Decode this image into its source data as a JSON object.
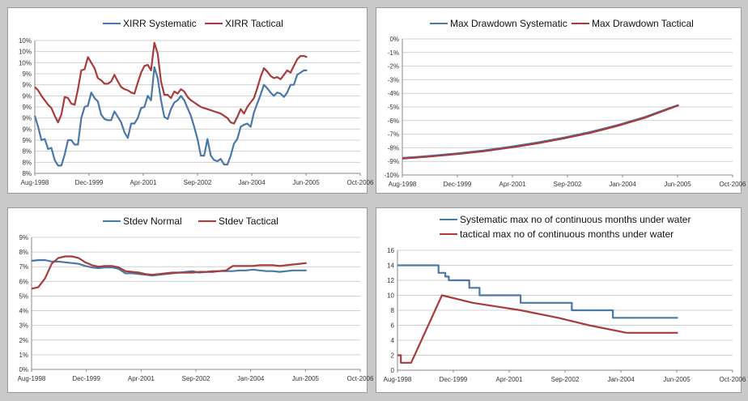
{
  "colors": {
    "systematic": "#4a78a8",
    "tactical": "#a83c3c",
    "grid": "#d0d0d0",
    "axis": "#888888"
  },
  "chart_data": [
    {
      "type": "line",
      "id": "xirr",
      "title": "",
      "legend": "top-center",
      "x_labels": [
        "Aug-1998",
        "Dec-1999",
        "Apr-2001",
        "Sep-2002",
        "Jan-2004",
        "Jun-2005",
        "Oct-2006"
      ],
      "x_range": [
        0,
        98
      ],
      "y_range": [
        0,
        12
      ],
      "y_tick_values": [
        0,
        1,
        2,
        3,
        4,
        5,
        6,
        7,
        8,
        9,
        10,
        11,
        12
      ],
      "y_tick_labels": [
        "8%",
        "8%",
        "8%",
        "9%",
        "9%",
        "9%",
        "9%",
        "9%",
        "9%",
        "9%",
        "10%",
        "10%",
        "10%"
      ],
      "series": [
        {
          "name": "XIRR Systematic",
          "color_key": "systematic",
          "x": [
            0,
            1,
            2,
            3,
            4,
            5,
            6,
            7,
            8,
            9,
            10,
            11,
            12,
            13,
            14,
            15,
            16,
            17,
            18,
            19,
            20,
            21,
            22,
            23,
            24,
            25,
            26,
            27,
            28,
            29,
            30,
            31,
            32,
            33,
            34,
            35,
            36,
            37,
            38,
            39,
            40,
            41,
            42,
            43,
            44,
            45,
            46,
            47,
            48,
            49,
            50,
            51,
            52,
            53,
            54,
            55,
            56,
            57,
            58,
            59,
            60,
            61,
            62,
            63,
            64,
            65,
            66,
            67,
            68,
            69,
            70,
            71,
            72,
            73,
            74,
            75,
            76,
            77,
            78,
            79,
            80,
            81,
            82
          ],
          "values": [
            5.2,
            4.2,
            3.0,
            3.1,
            2.2,
            2.3,
            1.2,
            0.7,
            0.7,
            1.7,
            3.0,
            3.0,
            2.6,
            2.6,
            5.0,
            6.0,
            6.1,
            7.3,
            6.8,
            6.5,
            5.3,
            4.9,
            4.8,
            4.8,
            5.6,
            5.1,
            4.6,
            3.7,
            3.2,
            4.5,
            4.5,
            5.0,
            5.9,
            6.0,
            7.0,
            6.6,
            9.6,
            8.6,
            6.6,
            5.1,
            4.9,
            5.8,
            6.4,
            6.6,
            7.0,
            6.6,
            5.9,
            5.2,
            4.2,
            3.1,
            1.6,
            1.6,
            3.1,
            1.6,
            1.2,
            1.1,
            1.3,
            0.8,
            0.8,
            1.6,
            2.7,
            3.1,
            4.2,
            4.4,
            4.5,
            4.2,
            5.5,
            6.3,
            7.1,
            8.0,
            7.7,
            7.3,
            7.0,
            7.3,
            7.2,
            6.9,
            7.3,
            8.0,
            8.0,
            8.9,
            9.1,
            9.3,
            9.3
          ]
        },
        {
          "name": "XIRR Tactical",
          "color_key": "tactical",
          "x": [
            0,
            1,
            2,
            3,
            4,
            5,
            6,
            7,
            8,
            9,
            10,
            11,
            12,
            13,
            14,
            15,
            16,
            17,
            18,
            19,
            20,
            21,
            22,
            23,
            24,
            25,
            26,
            27,
            28,
            29,
            30,
            31,
            32,
            33,
            34,
            35,
            36,
            37,
            38,
            39,
            40,
            41,
            42,
            43,
            44,
            45,
            46,
            47,
            48,
            49,
            50,
            51,
            52,
            53,
            54,
            55,
            56,
            57,
            58,
            59,
            60,
            61,
            62,
            63,
            64,
            65,
            66,
            67,
            68,
            69,
            70,
            71,
            72,
            73,
            74,
            75,
            76,
            77,
            78,
            79,
            80,
            81,
            82
          ],
          "values": [
            7.8,
            7.5,
            7.0,
            6.6,
            6.2,
            5.9,
            5.2,
            4.6,
            5.3,
            6.9,
            6.8,
            6.3,
            6.2,
            7.6,
            9.3,
            9.4,
            10.5,
            10.0,
            9.5,
            8.6,
            8.4,
            8.1,
            8.1,
            8.3,
            8.9,
            8.3,
            7.8,
            7.6,
            7.5,
            7.3,
            7.2,
            8.2,
            9.1,
            9.7,
            9.8,
            9.3,
            11.8,
            10.8,
            8.3,
            7.1,
            7.1,
            6.8,
            7.4,
            7.2,
            7.6,
            7.4,
            6.9,
            6.6,
            6.4,
            6.2,
            6.0,
            5.9,
            5.8,
            5.7,
            5.6,
            5.5,
            5.4,
            5.2,
            5.0,
            4.6,
            4.5,
            5.1,
            5.8,
            5.4,
            6.0,
            6.4,
            6.8,
            7.7,
            8.7,
            9.5,
            9.2,
            8.8,
            8.6,
            8.7,
            8.5,
            8.9,
            9.3,
            9.1,
            9.7,
            10.3,
            10.6,
            10.6,
            10.5
          ]
        }
      ]
    },
    {
      "type": "line",
      "id": "max-drawdown",
      "title": "",
      "legend": "top-center",
      "x_labels": [
        "Aug-1998",
        "Dec-1999",
        "Apr-2001",
        "Sep-2002",
        "Jan-2004",
        "Jun-2005",
        "Oct-2006"
      ],
      "x_range": [
        0,
        98
      ],
      "y_range": [
        -10,
        0
      ],
      "y_tick_values": [
        0,
        -1,
        -2,
        -3,
        -4,
        -5,
        -6,
        -7,
        -8,
        -9,
        -10
      ],
      "y_tick_labels": [
        "0%",
        "-1%",
        "-2%",
        "-3%",
        "-4%",
        "-5%",
        "-6%",
        "-7%",
        "-8%",
        "-9%",
        "-10%"
      ],
      "series": [
        {
          "name": "Max Drawdown Systematic",
          "color_key": "systematic",
          "x": [
            0,
            8,
            16,
            24,
            32,
            40,
            48,
            56,
            64,
            72,
            80,
            82
          ],
          "values": [
            -8.75,
            -8.6,
            -8.42,
            -8.2,
            -7.93,
            -7.62,
            -7.25,
            -6.83,
            -6.33,
            -5.74,
            -5.02,
            -4.85
          ]
        },
        {
          "name": "Max Drawdown Tactical",
          "color_key": "tactical",
          "x": [
            0,
            8,
            16,
            24,
            32,
            40,
            48,
            56,
            64,
            72,
            80,
            82
          ],
          "values": [
            -8.8,
            -8.65,
            -8.47,
            -8.26,
            -7.99,
            -7.68,
            -7.31,
            -6.89,
            -6.38,
            -5.79,
            -5.06,
            -4.88
          ]
        }
      ]
    },
    {
      "type": "line",
      "id": "stdev",
      "title": "",
      "legend": "top-center",
      "x_labels": [
        "Aug-1998",
        "Dec-1999",
        "Apr-2001",
        "Sep-2002",
        "Jan-2004",
        "Jun-2005",
        "Oct-2006"
      ],
      "x_range": [
        0,
        98
      ],
      "y_range": [
        0,
        9
      ],
      "y_tick_values": [
        0,
        1,
        2,
        3,
        4,
        5,
        6,
        7,
        8,
        9
      ],
      "y_tick_labels": [
        "0%",
        "1%",
        "2%",
        "3%",
        "4%",
        "5%",
        "6%",
        "7%",
        "8%",
        "9%"
      ],
      "series": [
        {
          "name": "Stdev Normal",
          "color_key": "systematic",
          "x": [
            0,
            2,
            4,
            6,
            8,
            10,
            12,
            14,
            16,
            18,
            20,
            22,
            24,
            26,
            28,
            30,
            32,
            34,
            36,
            38,
            40,
            42,
            44,
            46,
            48,
            50,
            52,
            54,
            56,
            58,
            60,
            62,
            64,
            66,
            68,
            70,
            72,
            74,
            76,
            78,
            80,
            82
          ],
          "values": [
            7.4,
            7.45,
            7.45,
            7.35,
            7.35,
            7.3,
            7.25,
            7.2,
            7.05,
            6.95,
            6.9,
            6.95,
            6.95,
            6.85,
            6.55,
            6.55,
            6.5,
            6.45,
            6.4,
            6.45,
            6.5,
            6.55,
            6.6,
            6.65,
            6.7,
            6.6,
            6.65,
            6.7,
            6.7,
            6.7,
            6.7,
            6.75,
            6.75,
            6.8,
            6.75,
            6.7,
            6.7,
            6.65,
            6.7,
            6.75,
            6.75,
            6.75
          ]
        },
        {
          "name": "Stdev Tactical",
          "color_key": "tactical",
          "x": [
            0,
            2,
            4,
            6,
            8,
            10,
            12,
            14,
            16,
            18,
            20,
            22,
            24,
            26,
            28,
            30,
            32,
            34,
            36,
            38,
            40,
            42,
            44,
            46,
            48,
            50,
            52,
            54,
            56,
            58,
            60,
            62,
            64,
            66,
            68,
            70,
            72,
            74,
            76,
            78,
            80,
            82
          ],
          "values": [
            5.5,
            5.6,
            6.2,
            7.2,
            7.6,
            7.7,
            7.7,
            7.6,
            7.3,
            7.1,
            7.0,
            7.05,
            7.05,
            6.95,
            6.7,
            6.65,
            6.6,
            6.5,
            6.45,
            6.5,
            6.55,
            6.6,
            6.6,
            6.6,
            6.6,
            6.65,
            6.65,
            6.65,
            6.7,
            6.75,
            7.05,
            7.05,
            7.05,
            7.05,
            7.1,
            7.1,
            7.1,
            7.05,
            7.1,
            7.15,
            7.2,
            7.25
          ]
        }
      ]
    },
    {
      "type": "line",
      "id": "months-under-water",
      "title": "",
      "legend": "top-center",
      "x_labels": [
        "Aug-1998",
        "Dec-1999",
        "Apr-2001",
        "Sep-2002",
        "Jan-2004",
        "Jun-2005",
        "Oct-2006"
      ],
      "x_range": [
        0,
        98
      ],
      "y_range": [
        0,
        16
      ],
      "y_tick_values": [
        0,
        2,
        4,
        6,
        8,
        10,
        12,
        14,
        16
      ],
      "y_tick_labels": [
        "0",
        "2",
        "4",
        "6",
        "8",
        "10",
        "12",
        "14",
        "16"
      ],
      "series": [
        {
          "name": "Systematic max no of continuous months under water",
          "color_key": "systematic",
          "x": [
            0,
            12,
            12,
            14,
            14,
            15,
            15,
            21,
            21,
            24,
            24,
            36,
            36,
            44,
            44,
            51,
            51,
            54,
            54,
            63,
            63,
            82
          ],
          "values": [
            14,
            14,
            13,
            13,
            12.5,
            12.5,
            12,
            12,
            11,
            11,
            10,
            10,
            9,
            9,
            9,
            9,
            8,
            8,
            8,
            8,
            7,
            7
          ]
        },
        {
          "name": "tactical max no of continuous months under water",
          "color_key": "tactical",
          "x": [
            0,
            1,
            1,
            3,
            3,
            4,
            8,
            11,
            13,
            13,
            22,
            22,
            36,
            36,
            47,
            47,
            56,
            56,
            67,
            67,
            82
          ],
          "values": [
            2,
            2,
            1,
            1,
            1,
            1,
            5,
            8,
            10,
            10,
            9,
            9,
            8,
            8,
            7,
            7,
            6,
            6,
            5,
            5,
            5
          ]
        }
      ]
    }
  ]
}
